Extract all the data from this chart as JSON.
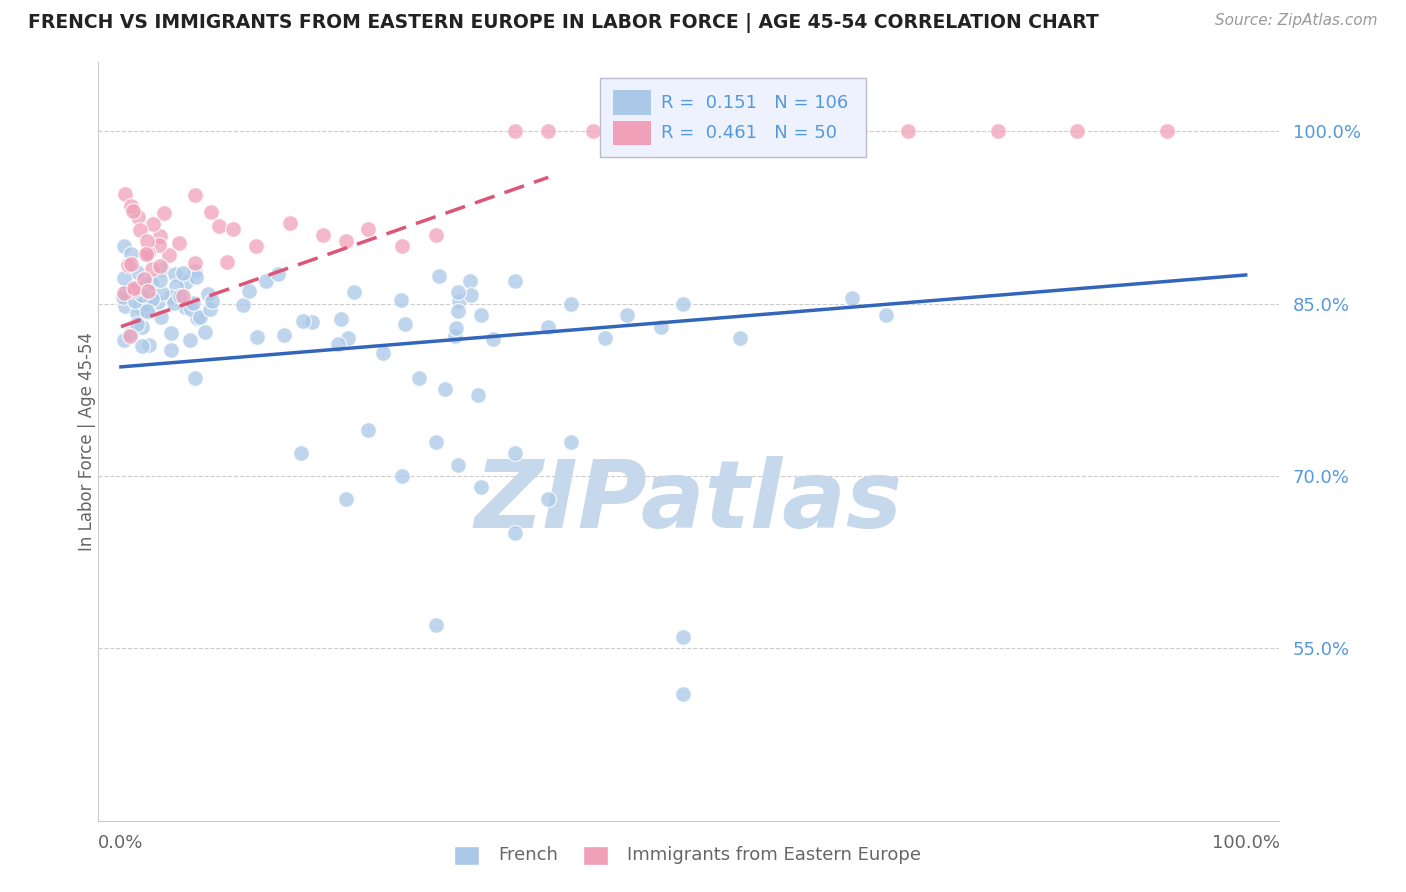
{
  "title": "FRENCH VS IMMIGRANTS FROM EASTERN EUROPE IN LABOR FORCE | AGE 45-54 CORRELATION CHART",
  "source": "Source: ZipAtlas.com",
  "ylabel": "In Labor Force | Age 45-54",
  "xlim": [
    -0.02,
    1.03
  ],
  "ylim": [
    0.4,
    1.06
  ],
  "xtick_positions": [
    0.0,
    1.0
  ],
  "xtick_labels": [
    "0.0%",
    "100.0%"
  ],
  "ytick_positions": [
    0.55,
    0.7,
    0.85,
    1.0
  ],
  "ytick_labels": [
    "55.0%",
    "70.0%",
    "85.0%",
    "100.0%"
  ],
  "blue_R": "0.151",
  "blue_N": "106",
  "pink_R": "0.461",
  "pink_N": "50",
  "blue_color": "#aac8e8",
  "pink_color": "#f0a0b8",
  "blue_line_color": "#3366bb",
  "pink_line_color": "#dd5577",
  "legend_bg": "#eef2ff",
  "legend_border": "#bbbbcc",
  "title_color": "#222222",
  "source_color": "#999999",
  "tick_color": "#5599dd",
  "ylabel_color": "#666666",
  "watermark": "ZIPatlas",
  "watermark_color": "#c5d8ec",
  "grid_color": "#cccccc",
  "spine_color": "#cccccc",
  "blue_line_x0": 0.0,
  "blue_line_x1": 1.0,
  "blue_line_y0": 0.795,
  "blue_line_y1": 0.875,
  "pink_line_x0": 0.0,
  "pink_line_x1": 0.38,
  "pink_line_y0": 0.83,
  "pink_line_y1": 0.96,
  "scatter_marker_size": 130,
  "scatter_alpha": 0.75,
  "scatter_linewidth": 1.0,
  "scatter_edge_color": "#ffffff"
}
